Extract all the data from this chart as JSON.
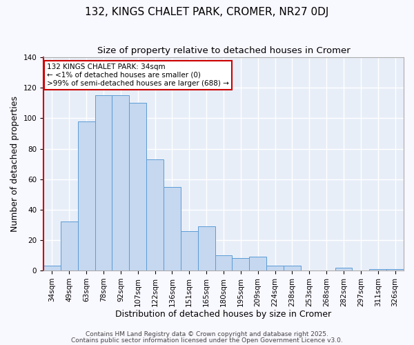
{
  "title": "132, KINGS CHALET PARK, CROMER, NR27 0DJ",
  "subtitle": "Size of property relative to detached houses in Cromer",
  "xlabel": "Distribution of detached houses by size in Cromer",
  "ylabel": "Number of detached properties",
  "categories": [
    "34sqm",
    "49sqm",
    "63sqm",
    "78sqm",
    "92sqm",
    "107sqm",
    "122sqm",
    "136sqm",
    "151sqm",
    "165sqm",
    "180sqm",
    "195sqm",
    "209sqm",
    "224sqm",
    "238sqm",
    "253sqm",
    "268sqm",
    "282sqm",
    "297sqm",
    "311sqm",
    "326sqm"
  ],
  "values": [
    3,
    32,
    98,
    115,
    115,
    110,
    73,
    55,
    26,
    29,
    10,
    8,
    9,
    3,
    3,
    0,
    0,
    2,
    0,
    1,
    1
  ],
  "bar_color": "#c5d8f0",
  "bar_edge_color": "#5b9bd5",
  "fig_bg_color": "#f8f8ff",
  "plot_bg_color": "#e8eef8",
  "grid_color": "#ffffff",
  "annotation_box_text": "132 KINGS CHALET PARK: 34sqm\n← <1% of detached houses are smaller (0)\n>99% of semi-detached houses are larger (688) →",
  "annotation_box_edge_color": "#cc0000",
  "annotation_box_bg": "#ffffff",
  "ylim": [
    0,
    140
  ],
  "yticks": [
    0,
    20,
    40,
    60,
    80,
    100,
    120,
    140
  ],
  "footer1": "Contains HM Land Registry data © Crown copyright and database right 2025.",
  "footer2": "Contains public sector information licensed under the Open Government Licence v3.0.",
  "title_fontsize": 11,
  "subtitle_fontsize": 9.5,
  "xlabel_fontsize": 9,
  "ylabel_fontsize": 9,
  "tick_fontsize": 7.5,
  "annotation_fontsize": 7.5,
  "footer_fontsize": 6.5
}
